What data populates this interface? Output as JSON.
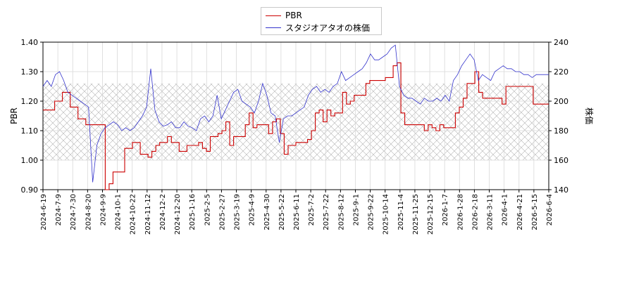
{
  "chart_data": {
    "type": "line",
    "legend": {
      "position": "top-center",
      "entries": [
        {
          "name": "PBR",
          "color": "#cc0000"
        },
        {
          "name": "スタジオアタオの株価",
          "color": "#3333cc"
        }
      ]
    },
    "y_left": {
      "label": "PBR",
      "ylim": [
        0.9,
        1.4
      ],
      "ticks": [
        "0.90",
        "1.00",
        "1.10",
        "1.20",
        "1.30",
        "1.40"
      ]
    },
    "y_right": {
      "label": "株価",
      "ylim": [
        140,
        240
      ],
      "ticks": [
        "140",
        "160",
        "180",
        "200",
        "220",
        "240"
      ]
    },
    "x_ticks": [
      "2024-6-19",
      "2024-7-9",
      "2024-7-30",
      "2024-8-20",
      "2024-9-9",
      "2024-10-1",
      "2024-10-22",
      "2024-11-12",
      "2024-12-2",
      "2024-12-20",
      "2025-1-16",
      "2025-2-5",
      "2025-2-27",
      "2025-3-19",
      "2025-4-9",
      "2025-4-30",
      "2025-5-22",
      "2025-6-11",
      "2025-7-2",
      "2025-7-22",
      "2025-8-12",
      "2025-9-1",
      "2025-9-22",
      "2025-10-14",
      "2025-11-4",
      "2025-11-25",
      "2025-12-15",
      "2026-1-7",
      "2026-1-28",
      "2026-2-18",
      "2026-3-11",
      "2026-4-1",
      "2026-4-21",
      "2026-5-15",
      "2026-6-4"
    ],
    "grid": true,
    "shaded_band": {
      "pbr_range": [
        1.0,
        1.26
      ],
      "pattern": "crosshatch"
    },
    "series": [
      {
        "name": "PBR",
        "color": "#cc0000",
        "axis": "left",
        "points": [
          [
            0,
            1.17
          ],
          [
            2,
            1.17
          ],
          [
            3,
            1.2
          ],
          [
            4,
            1.2
          ],
          [
            5,
            1.23
          ],
          [
            6,
            1.23
          ],
          [
            7,
            1.18
          ],
          [
            8,
            1.18
          ],
          [
            9,
            1.14
          ],
          [
            10,
            1.14
          ],
          [
            11,
            1.12
          ],
          [
            12,
            1.12
          ],
          [
            13,
            1.12
          ],
          [
            14,
            1.12
          ],
          [
            15,
            1.12
          ],
          [
            16,
            0.9
          ],
          [
            17,
            0.92
          ],
          [
            18,
            0.96
          ],
          [
            19,
            0.96
          ],
          [
            20,
            0.96
          ],
          [
            21,
            1.04
          ],
          [
            22,
            1.04
          ],
          [
            23,
            1.06
          ],
          [
            24,
            1.06
          ],
          [
            25,
            1.02
          ],
          [
            26,
            1.02
          ],
          [
            27,
            1.01
          ],
          [
            28,
            1.03
          ],
          [
            29,
            1.05
          ],
          [
            30,
            1.06
          ],
          [
            31,
            1.06
          ],
          [
            32,
            1.08
          ],
          [
            33,
            1.06
          ],
          [
            34,
            1.06
          ],
          [
            35,
            1.03
          ],
          [
            36,
            1.03
          ],
          [
            37,
            1.05
          ],
          [
            38,
            1.05
          ],
          [
            39,
            1.05
          ],
          [
            40,
            1.06
          ],
          [
            41,
            1.04
          ],
          [
            42,
            1.03
          ],
          [
            43,
            1.08
          ],
          [
            44,
            1.08
          ],
          [
            45,
            1.09
          ],
          [
            46,
            1.1
          ],
          [
            47,
            1.13
          ],
          [
            48,
            1.05
          ],
          [
            49,
            1.08
          ],
          [
            50,
            1.08
          ],
          [
            51,
            1.08
          ],
          [
            52,
            1.12
          ],
          [
            53,
            1.16
          ],
          [
            54,
            1.11
          ],
          [
            55,
            1.12
          ],
          [
            56,
            1.12
          ],
          [
            57,
            1.12
          ],
          [
            58,
            1.09
          ],
          [
            59,
            1.13
          ],
          [
            60,
            1.14
          ],
          [
            61,
            1.09
          ],
          [
            62,
            1.02
          ],
          [
            63,
            1.05
          ],
          [
            64,
            1.05
          ],
          [
            65,
            1.06
          ],
          [
            66,
            1.06
          ],
          [
            67,
            1.06
          ],
          [
            68,
            1.07
          ],
          [
            69,
            1.1
          ],
          [
            70,
            1.16
          ],
          [
            71,
            1.17
          ],
          [
            72,
            1.13
          ],
          [
            73,
            1.17
          ],
          [
            74,
            1.15
          ],
          [
            75,
            1.16
          ],
          [
            76,
            1.16
          ],
          [
            77,
            1.23
          ],
          [
            78,
            1.19
          ],
          [
            79,
            1.2
          ],
          [
            80,
            1.22
          ],
          [
            81,
            1.22
          ],
          [
            82,
            1.22
          ],
          [
            83,
            1.26
          ],
          [
            84,
            1.27
          ],
          [
            85,
            1.27
          ],
          [
            86,
            1.27
          ],
          [
            87,
            1.27
          ],
          [
            88,
            1.28
          ],
          [
            89,
            1.28
          ],
          [
            90,
            1.32
          ],
          [
            91,
            1.33
          ],
          [
            92,
            1.16
          ],
          [
            93,
            1.12
          ],
          [
            94,
            1.12
          ],
          [
            95,
            1.12
          ],
          [
            96,
            1.12
          ],
          [
            97,
            1.12
          ],
          [
            98,
            1.1
          ],
          [
            99,
            1.12
          ],
          [
            100,
            1.11
          ],
          [
            101,
            1.1
          ],
          [
            102,
            1.12
          ],
          [
            103,
            1.11
          ],
          [
            104,
            1.11
          ],
          [
            105,
            1.11
          ],
          [
            106,
            1.16
          ],
          [
            107,
            1.18
          ],
          [
            108,
            1.21
          ],
          [
            109,
            1.26
          ],
          [
            110,
            1.26
          ],
          [
            111,
            1.3
          ],
          [
            112,
            1.23
          ],
          [
            113,
            1.21
          ],
          [
            114,
            1.21
          ],
          [
            115,
            1.21
          ],
          [
            116,
            1.21
          ],
          [
            117,
            1.21
          ],
          [
            118,
            1.19
          ],
          [
            119,
            1.25
          ],
          [
            120,
            1.25
          ],
          [
            121,
            1.25
          ],
          [
            122,
            1.25
          ],
          [
            123,
            1.25
          ],
          [
            124,
            1.25
          ],
          [
            125,
            1.25
          ],
          [
            126,
            1.19
          ],
          [
            127,
            1.19
          ],
          [
            128,
            1.19
          ],
          [
            129,
            1.19
          ],
          [
            130,
            1.19
          ]
        ]
      },
      {
        "name": "スタジオアタオの株価",
        "color": "#3333cc",
        "axis": "right",
        "points": [
          [
            0,
            210
          ],
          [
            1,
            214
          ],
          [
            2,
            210
          ],
          [
            3,
            218
          ],
          [
            4,
            220
          ],
          [
            5,
            214
          ],
          [
            6,
            206
          ],
          [
            7,
            204
          ],
          [
            8,
            202
          ],
          [
            9,
            200
          ],
          [
            10,
            198
          ],
          [
            11,
            196
          ],
          [
            12,
            145
          ],
          [
            13,
            170
          ],
          [
            14,
            178
          ],
          [
            15,
            182
          ],
          [
            16,
            184
          ],
          [
            17,
            186
          ],
          [
            18,
            184
          ],
          [
            19,
            180
          ],
          [
            20,
            182
          ],
          [
            21,
            180
          ],
          [
            22,
            182
          ],
          [
            23,
            186
          ],
          [
            24,
            190
          ],
          [
            25,
            196
          ],
          [
            26,
            222
          ],
          [
            27,
            194
          ],
          [
            28,
            186
          ],
          [
            29,
            183
          ],
          [
            30,
            184
          ],
          [
            31,
            186
          ],
          [
            32,
            182
          ],
          [
            33,
            182
          ],
          [
            34,
            186
          ],
          [
            35,
            183
          ],
          [
            36,
            182
          ],
          [
            37,
            180
          ],
          [
            38,
            188
          ],
          [
            39,
            190
          ],
          [
            40,
            186
          ],
          [
            41,
            190
          ],
          [
            42,
            204
          ],
          [
            43,
            188
          ],
          [
            44,
            194
          ],
          [
            45,
            200
          ],
          [
            46,
            206
          ],
          [
            47,
            208
          ],
          [
            48,
            200
          ],
          [
            49,
            198
          ],
          [
            50,
            196
          ],
          [
            51,
            192
          ],
          [
            52,
            200
          ],
          [
            53,
            212
          ],
          [
            54,
            204
          ],
          [
            55,
            192
          ],
          [
            56,
            190
          ],
          [
            57,
            172
          ],
          [
            58,
            188
          ],
          [
            59,
            190
          ],
          [
            60,
            190
          ],
          [
            61,
            192
          ],
          [
            62,
            194
          ],
          [
            63,
            196
          ],
          [
            64,
            204
          ],
          [
            65,
            208
          ],
          [
            66,
            210
          ],
          [
            67,
            206
          ],
          [
            68,
            208
          ],
          [
            69,
            206
          ],
          [
            70,
            210
          ],
          [
            71,
            212
          ],
          [
            72,
            220
          ],
          [
            73,
            214
          ],
          [
            74,
            216
          ],
          [
            75,
            218
          ],
          [
            76,
            220
          ],
          [
            77,
            222
          ],
          [
            78,
            226
          ],
          [
            79,
            232
          ],
          [
            80,
            228
          ],
          [
            81,
            228
          ],
          [
            82,
            230
          ],
          [
            83,
            232
          ],
          [
            84,
            236
          ],
          [
            85,
            238
          ],
          [
            86,
            210
          ],
          [
            87,
            204
          ],
          [
            88,
            202
          ],
          [
            89,
            202
          ],
          [
            90,
            200
          ],
          [
            91,
            198
          ],
          [
            92,
            202
          ],
          [
            93,
            200
          ],
          [
            94,
            200
          ],
          [
            95,
            202
          ],
          [
            96,
            200
          ],
          [
            97,
            204
          ],
          [
            98,
            200
          ],
          [
            99,
            214
          ],
          [
            100,
            218
          ],
          [
            101,
            224
          ],
          [
            102,
            228
          ],
          [
            103,
            232
          ],
          [
            104,
            228
          ],
          [
            105,
            214
          ],
          [
            106,
            218
          ],
          [
            107,
            216
          ],
          [
            108,
            214
          ],
          [
            109,
            220
          ],
          [
            110,
            222
          ],
          [
            111,
            224
          ],
          [
            112,
            222
          ],
          [
            113,
            222
          ],
          [
            114,
            220
          ],
          [
            115,
            220
          ],
          [
            116,
            218
          ],
          [
            117,
            218
          ],
          [
            118,
            216
          ],
          [
            119,
            218
          ],
          [
            120,
            218
          ],
          [
            121,
            218
          ],
          [
            122,
            218
          ]
        ]
      }
    ]
  }
}
